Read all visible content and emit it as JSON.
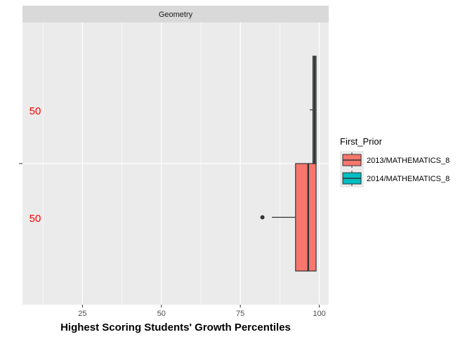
{
  "chart_data": {
    "type": "boxplot",
    "orientation": "horizontal",
    "facet": "Geometry",
    "xlabel": "Highest Scoring Students' Growth Percentiles",
    "ylabel": "",
    "xlim": [
      6,
      103
    ],
    "x_ticks": [
      25,
      50,
      75,
      100
    ],
    "grid": true,
    "legend": {
      "title": "First_Prior",
      "position": "right",
      "entries": [
        {
          "label": "2013/MATHEMATICS_8",
          "color": "#F8766D"
        },
        {
          "label": "2014/MATHEMATICS_8",
          "color": "#00BFC4"
        }
      ]
    },
    "series": [
      {
        "name": "2013/MATHEMATICS_8",
        "color": "#F8766D",
        "group": "lower",
        "min": 85,
        "q1": 92.5,
        "median": 96.5,
        "q3": 99,
        "max": 99,
        "outliers": [
          82
        ],
        "annotation": "50"
      },
      {
        "name": "2014/MATHEMATICS_8",
        "color": "#00BFC4",
        "group": "upper",
        "min": 97,
        "q1": 98,
        "median": 98.5,
        "q3": 99,
        "max": 99,
        "outliers": [],
        "annotation": "50"
      }
    ]
  }
}
